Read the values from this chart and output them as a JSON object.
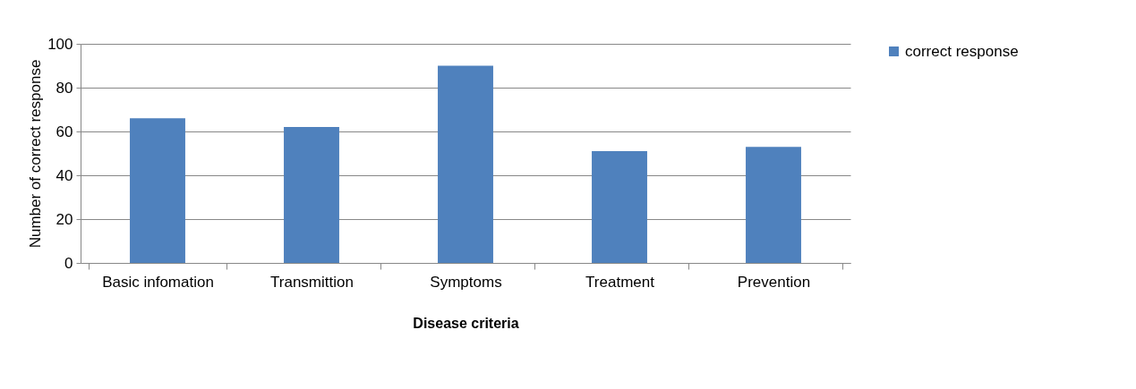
{
  "chart_data": {
    "type": "bar",
    "xlabel": "Disease criteria",
    "ylabel": "Number of correct response",
    "categories": [
      "Basic infomation",
      "Transmittion",
      "Symptoms",
      "Treatment",
      "Prevention"
    ],
    "series": [
      {
        "name": "correct response",
        "color": "#4f81bd",
        "values": [
          66,
          62,
          90,
          51,
          53
        ]
      }
    ],
    "ylim": [
      0,
      100
    ],
    "yticks": [
      0,
      20,
      40,
      60,
      80,
      100
    ],
    "grid": "y",
    "legend": "right"
  }
}
